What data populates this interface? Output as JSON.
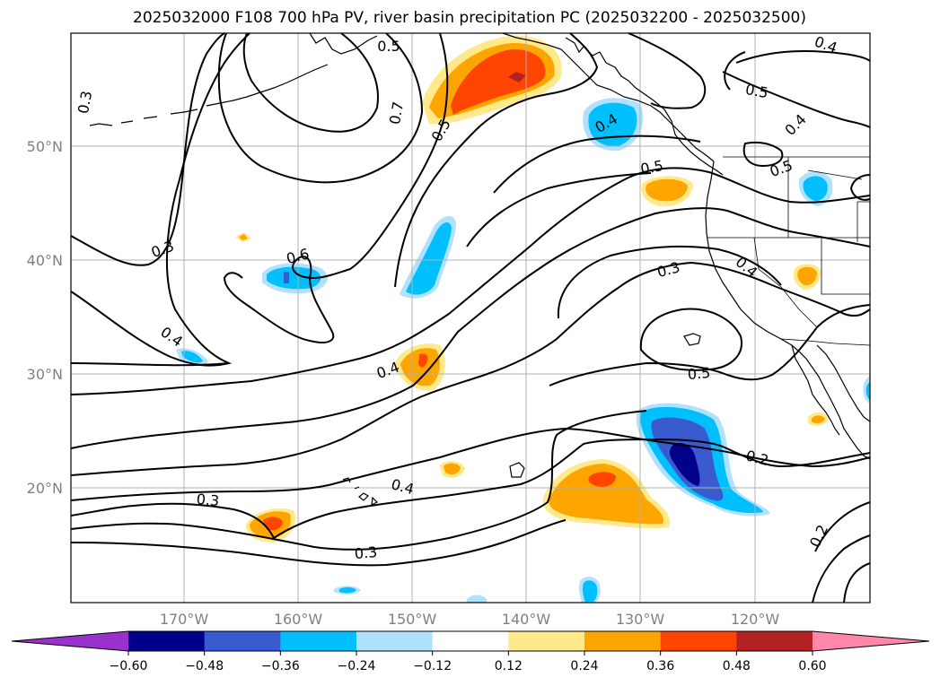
{
  "title": "2025032000 F108 700 hPa PV, river basin precipitation PC (2025032200 - 2025032500)",
  "axes": {
    "lon_ticks": [
      "170°W",
      "160°W",
      "150°W",
      "140°W",
      "130°W",
      "120°W"
    ],
    "lat_ticks": [
      "50°N",
      "40°N",
      "30°N",
      "20°N"
    ],
    "grid": true
  },
  "contour_labels": [
    "0.3",
    "0.5",
    "0.7",
    "0.5",
    "0.4",
    "0.4",
    "0.5",
    "0.4",
    "0.5",
    "0.3",
    "0.6",
    "0.4",
    "0.4",
    "0.3",
    "0.4",
    "0.5",
    "0.2",
    "0.3",
    "0.4",
    "0.3",
    "0.2",
    "0.5"
  ],
  "colorbar": {
    "ticks": [
      "−0.60",
      "−0.48",
      "−0.36",
      "−0.24",
      "−0.12",
      "0.12",
      "0.24",
      "0.36",
      "0.48",
      "0.60"
    ],
    "colors": [
      "#9932cc",
      "#00008b",
      "#3a5bd0",
      "#00bfff",
      "#b0e2ff",
      "#ffffff",
      "#ffe98a",
      "#ffa500",
      "#ff4500",
      "#b22222",
      "#ff88aa"
    ],
    "extend": "both"
  }
}
